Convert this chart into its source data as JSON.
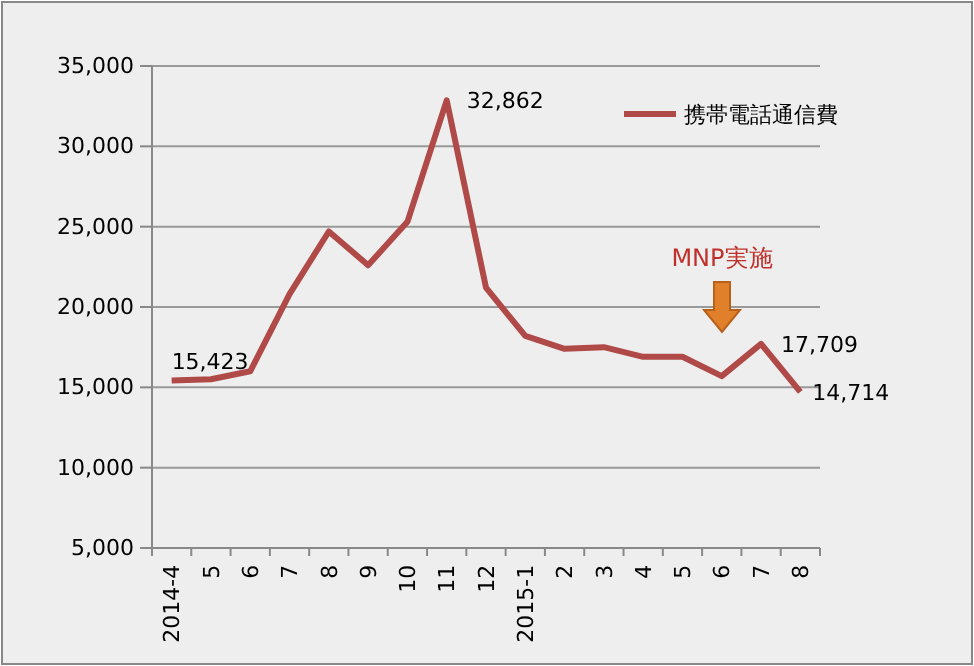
{
  "chart_data": {
    "type": "line",
    "categories": [
      "2014-4",
      "5",
      "6",
      "7",
      "8",
      "9",
      "10",
      "11",
      "12",
      "2015-1",
      "2",
      "3",
      "4",
      "5",
      "6",
      "7",
      "8"
    ],
    "series": [
      {
        "name": "携帯電話通信費",
        "color": "#b04a48",
        "values": [
          15423,
          15500,
          16000,
          20800,
          24700,
          22600,
          25300,
          32862,
          21200,
          18200,
          17400,
          17500,
          16900,
          16900,
          15700,
          17709,
          14714
        ],
        "value_labels": [
          "15,423",
          null,
          null,
          null,
          null,
          null,
          null,
          "32,862",
          null,
          null,
          null,
          null,
          null,
          null,
          null,
          "17,709",
          "14,714"
        ]
      }
    ],
    "ylim": [
      5000,
      35000
    ],
    "yticks": [
      {
        "value": 5000,
        "label": "5,000"
      },
      {
        "value": 10000,
        "label": "10,000"
      },
      {
        "value": 15000,
        "label": "15,000"
      },
      {
        "value": 20000,
        "label": "20,000"
      },
      {
        "value": 25000,
        "label": "25,000"
      },
      {
        "value": 30000,
        "label": "30,000"
      },
      {
        "value": 35000,
        "label": "35,000"
      }
    ],
    "grid": "y",
    "legend": "top right",
    "marker": "none",
    "line_style": "solid",
    "annotations": [
      "MNP実施"
    ]
  }
}
